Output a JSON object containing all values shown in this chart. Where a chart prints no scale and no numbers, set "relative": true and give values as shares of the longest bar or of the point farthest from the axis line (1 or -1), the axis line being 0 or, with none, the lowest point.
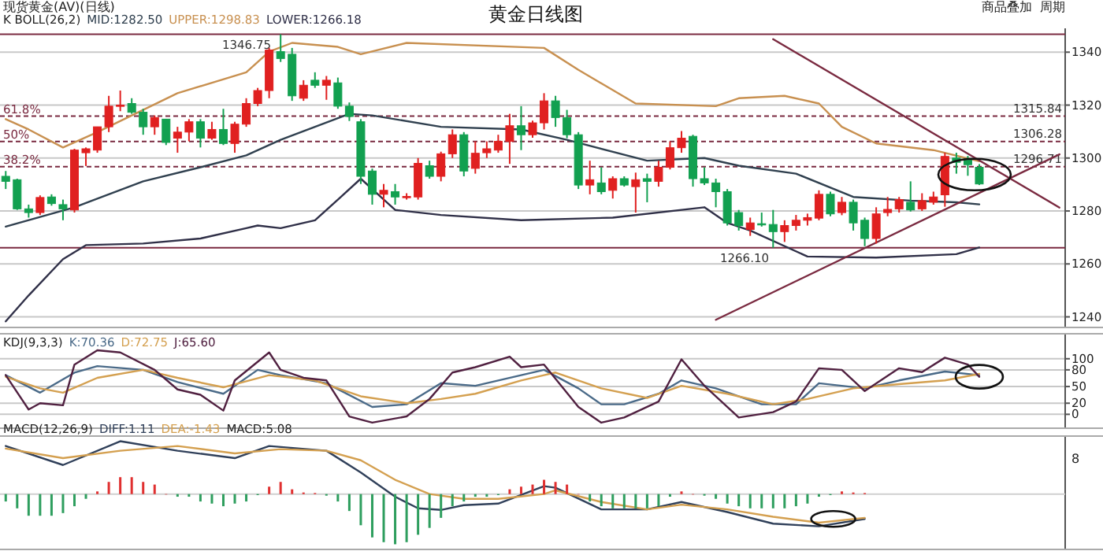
{
  "chart_data": [
    {
      "type": "candlestick",
      "title": "黄金日线图",
      "annotations": [
        "现货黄金(AV)(日线)",
        "商品叠加",
        "周期",
        "K  BOLL(26,2)",
        "MID:1282.50",
        "UPPER:1298.83",
        "LOWER:1266.18",
        {
          "text": "61.8%",
          "y": 1315.84
        },
        {
          "text": "50%",
          "y": 1306.28
        },
        {
          "text": "38.2%",
          "y": 1296.71
        }
      ],
      "categories": [
        null,
        null,
        null,
        null,
        null,
        null,
        null,
        null,
        null,
        null,
        null,
        null,
        null,
        null,
        null,
        null,
        null,
        null,
        null,
        null,
        null,
        null,
        null,
        null,
        null,
        null,
        null,
        null,
        null,
        null,
        null,
        null,
        null,
        null,
        null,
        null,
        null,
        null,
        null,
        null,
        null,
        null,
        null,
        null,
        null,
        null,
        null,
        null,
        null,
        null,
        null,
        null,
        null,
        null,
        null,
        null,
        null,
        null,
        null,
        null,
        null,
        null,
        null,
        null,
        null,
        null,
        null,
        null,
        null,
        null,
        null,
        null,
        null,
        null,
        null,
        null,
        null,
        null,
        null,
        null,
        null,
        null,
        null,
        null,
        null,
        null,
        null,
        null,
        null,
        null,
        null,
        null,
        null
      ],
      "ohlc": [
        [
          1293.1,
          1295.1,
          1288.3,
          1291.2
        ],
        [
          1291.8,
          1292.2,
          1280.4,
          1280.8
        ],
        [
          1280.8,
          1282.4,
          1277.5,
          1279.4
        ],
        [
          1279.4,
          1285.9,
          1278.5,
          1285.1
        ],
        [
          1285.3,
          1286.3,
          1282,
          1282.8
        ],
        [
          1282.4,
          1284.3,
          1276.5,
          1280.8
        ],
        [
          1280.4,
          1303.5,
          1279.4,
          1303
        ],
        [
          1302,
          1304,
          1297,
          1303.5
        ],
        [
          1303,
          1311.8,
          1302,
          1311.8
        ],
        [
          1311.8,
          1323.5,
          1309.8,
          1319.6
        ],
        [
          1319.6,
          1325.5,
          1317.7,
          1320
        ],
        [
          1320.6,
          1322.6,
          1316.7,
          1317.3
        ],
        [
          1317.3,
          1318.6,
          1308.8,
          1311.8
        ],
        [
          1311.8,
          1316.1,
          1308.8,
          1315.3
        ],
        [
          1314.7,
          1314.7,
          1304.9,
          1305.9
        ],
        [
          1307.5,
          1311.8,
          1302,
          1309.8
        ],
        [
          1309.8,
          1314.7,
          1306.3,
          1313.7
        ],
        [
          1313.7,
          1314.7,
          1304,
          1307.5
        ],
        [
          1307.5,
          1313.7,
          1306.9,
          1310.8
        ],
        [
          1310.8,
          1318.6,
          1304.9,
          1305.5
        ],
        [
          1305.5,
          1313.7,
          1302,
          1312.8
        ],
        [
          1312.8,
          1322.6,
          1311.8,
          1320.6
        ],
        [
          1320.6,
          1326.5,
          1319.6,
          1325.5
        ],
        [
          1325.5,
          1341.6,
          1322.6,
          1340.8
        ],
        [
          1340.2,
          1346.75,
          1336.3,
          1337.6
        ],
        [
          1339.2,
          1341.6,
          1321.6,
          1323.5
        ],
        [
          1322.6,
          1329.4,
          1321.6,
          1327.5
        ],
        [
          1329.4,
          1332.4,
          1326.5,
          1327.5
        ],
        [
          1327.5,
          1331,
          1322,
          1329.4
        ],
        [
          1328.4,
          1330.4,
          1318.6,
          1319.6
        ],
        [
          1319.6,
          1321,
          1314,
          1315.7
        ],
        [
          1313.7,
          1314.7,
          1290.2,
          1293.1
        ],
        [
          1295.1,
          1296,
          1282.4,
          1286.3
        ],
        [
          1286.3,
          1290.2,
          1281.4,
          1287.8
        ],
        [
          1287.3,
          1290.2,
          1282.4,
          1285.3
        ],
        [
          1285.1,
          1286.7,
          1284.3,
          1285.5
        ],
        [
          1285.3,
          1300,
          1284.3,
          1298
        ],
        [
          1297.1,
          1299,
          1292.2,
          1293.1
        ],
        [
          1293.1,
          1302.4,
          1291.2,
          1301.6
        ],
        [
          1301.6,
          1310.8,
          1300,
          1308.8
        ],
        [
          1308.8,
          1309.8,
          1293.1,
          1295.1
        ],
        [
          1296.1,
          1306.3,
          1294.1,
          1301.8
        ],
        [
          1302,
          1306.3,
          1300,
          1303.5
        ],
        [
          1303,
          1308.8,
          1302,
          1306.3
        ],
        [
          1306.3,
          1316.7,
          1297.8,
          1312.2
        ],
        [
          1312.2,
          1319.6,
          1303,
          1308.8
        ],
        [
          1308.8,
          1314.1,
          1307.7,
          1313.3
        ],
        [
          1313.3,
          1324.5,
          1310.8,
          1321.6
        ],
        [
          1321.6,
          1323.5,
          1311.8,
          1315.3
        ],
        [
          1315.3,
          1318.2,
          1307.5,
          1308.8
        ],
        [
          1308.8,
          1309.8,
          1288.3,
          1289.8
        ],
        [
          1289.8,
          1299,
          1286.3,
          1291.8
        ],
        [
          1290.6,
          1296.5,
          1286.3,
          1287.3
        ],
        [
          1287.8,
          1293.1,
          1284.7,
          1292.2
        ],
        [
          1292.2,
          1293.1,
          1289.2,
          1289.8
        ],
        [
          1289.2,
          1294.5,
          1279.4,
          1291.8
        ],
        [
          1292.2,
          1294.1,
          1283.3,
          1291.2
        ],
        [
          1291.2,
          1299,
          1289.2,
          1296.5
        ],
        [
          1296.5,
          1306.3,
          1295.7,
          1303.9
        ],
        [
          1303.9,
          1310.2,
          1302,
          1307.5
        ],
        [
          1308.2,
          1308.8,
          1289.2,
          1292.2
        ],
        [
          1292.2,
          1296.5,
          1289.8,
          1290.6
        ],
        [
          1290.6,
          1292.2,
          1281.4,
          1287.3
        ],
        [
          1287.3,
          1288.3,
          1274.5,
          1275.5
        ],
        [
          1279.4,
          1280.4,
          1272.6,
          1274.5
        ],
        [
          1273,
          1277.5,
          1270.6,
          1275.5
        ],
        [
          1275.2,
          1279.4,
          1274.1,
          1274.9
        ],
        [
          1274.9,
          1280.4,
          1266.1,
          1272.2
        ],
        [
          1272.2,
          1276.5,
          1268.3,
          1274.5
        ],
        [
          1274.5,
          1278.5,
          1272.6,
          1276.5
        ],
        [
          1276.5,
          1279,
          1274.5,
          1277.5
        ],
        [
          1277.3,
          1287.8,
          1276.5,
          1286.3
        ],
        [
          1286.3,
          1287.3,
          1278,
          1278.9
        ],
        [
          1279.4,
          1285.3,
          1278.4,
          1283.3
        ],
        [
          1283.3,
          1284.3,
          1272.6,
          1275.5
        ],
        [
          1276.5,
          1277.5,
          1266.7,
          1269.6
        ],
        [
          1269.6,
          1281.4,
          1267.7,
          1278.9
        ],
        [
          1279.4,
          1285.3,
          1278,
          1280.6
        ],
        [
          1280.8,
          1285.3,
          1279.4,
          1284.3
        ],
        [
          1283.3,
          1291.2,
          1279.8,
          1280.4
        ],
        [
          1280.8,
          1286.7,
          1280,
          1283.9
        ],
        [
          1283.3,
          1287.3,
          1282.4,
          1285.3
        ],
        [
          1286.1,
          1302,
          1281.6,
          1300.6
        ],
        [
          1300,
          1302,
          1294.1,
          1298.4
        ],
        [
          1299.8,
          1300.8,
          1293.3,
          1297.5
        ],
        [
          1296.5,
          1297.7,
          1289.8,
          1290.2
        ],
        null,
        null,
        null,
        null,
        null,
        null,
        null
      ],
      "colors": [
        "#12a050",
        "#12a050",
        "#12a050",
        "#e02020",
        "#12a050",
        "#12a050",
        "#e02020",
        "#e02020",
        "#e02020",
        "#e02020",
        "#e02020",
        "#12a050",
        "#12a050",
        "#e02020",
        "#12a050",
        "#e02020",
        "#e02020",
        "#12a050",
        "#e02020",
        "#12a050",
        "#e02020",
        "#e02020",
        "#e02020",
        "#e02020",
        "#12a050",
        "#12a050",
        "#e02020",
        "#12a050",
        "#e02020",
        "#12a050",
        "#12a050",
        "#12a050",
        "#12a050",
        "#e02020",
        "#12a050",
        "#e02020",
        "#e02020",
        "#12a050",
        "#e02020",
        "#e02020",
        "#12a050",
        "#e02020",
        "#e02020",
        "#e02020",
        "#e02020",
        "#12a050",
        "#e02020",
        "#e02020",
        "#12a050",
        "#12a050",
        "#12a050",
        "#e02020",
        "#12a050",
        "#e02020",
        "#12a050",
        "#e02020",
        "#12a050",
        "#e02020",
        "#e02020",
        "#e02020",
        "#12a050",
        "#12a050",
        "#12a050",
        "#12a050",
        "#12a050",
        "#e02020",
        "#12a050",
        "#12a050",
        "#e02020",
        "#e02020",
        "#e02020",
        "#e02020",
        "#12a050",
        "#e02020",
        "#12a050",
        "#12a050",
        "#e02020",
        "#e02020",
        "#e02020",
        "#12a050",
        "#e02020",
        "#e02020",
        "#e02020",
        "#12a050",
        "#12a050",
        "#12a050",
        null,
        null,
        null,
        null,
        null,
        null,
        null
      ],
      "series": [
        {
          "type": "line",
          "color": "#c89050",
          "values": [
            1314.7,
            null,
            1310.8,
            null,
            null,
            1304,
            null,
            null,
            1309.8,
            null,
            null,
            null,
            null,
            null,
            null,
            1324.5,
            null,
            null,
            null,
            null,
            null,
            1332.4,
            null,
            1340.2,
            null,
            1343.5,
            null,
            null,
            null,
            1342,
            null,
            1339.2,
            null,
            null,
            null,
            1343.5,
            null,
            null,
            null,
            null,
            null,
            null,
            null,
            null,
            null,
            null,
            null,
            1341.6,
            null,
            null,
            1333.3,
            null,
            null,
            null,
            null,
            1320.6,
            null,
            null,
            null,
            null,
            null,
            null,
            1319.6,
            null,
            1322.6,
            null,
            null,
            null,
            1323.5,
            null,
            null,
            1320.6,
            null,
            1311.8,
            null,
            null,
            1305.5,
            null,
            null,
            null,
            null,
            1303,
            null,
            null,
            null,
            1298.8,
            null,
            null,
            null,
            null,
            null,
            null,
            null
          ]
        },
        {
          "type": "line",
          "color": "#30404f",
          "values": [
            1274.1,
            null,
            null,
            null,
            null,
            null,
            1281.4,
            null,
            null,
            null,
            null,
            null,
            1291.2,
            null,
            null,
            null,
            null,
            1296.5,
            null,
            null,
            null,
            1301,
            null,
            null,
            1306.9,
            null,
            null,
            1311.8,
            null,
            null,
            1316.7,
            null,
            1316.1,
            null,
            null,
            null,
            null,
            null,
            1311.8,
            null,
            null,
            null,
            null,
            null,
            null,
            1310.8,
            null,
            null,
            null,
            1306.9,
            null,
            null,
            null,
            null,
            null,
            null,
            1299,
            null,
            null,
            null,
            null,
            1300,
            null,
            null,
            1297.1,
            null,
            null,
            null,
            null,
            1294.1,
            null,
            null,
            null,
            null,
            1285.3,
            null,
            null,
            null,
            null,
            1283.9,
            null,
            null,
            null,
            1283.3,
            null,
            1282.5,
            null,
            null,
            null,
            null,
            null,
            null,
            null
          ]
        },
        {
          "type": "line",
          "color": "#303048",
          "values": [
            1238.3,
            null,
            1248.1,
            null,
            null,
            1261.8,
            null,
            1267.1,
            null,
            null,
            null,
            null,
            1267.7,
            null,
            null,
            null,
            null,
            1269.6,
            null,
            null,
            null,
            1273.5,
            1274.5,
            null,
            1273.5,
            null,
            null,
            1276.5,
            null,
            1284.3,
            null,
            1292.2,
            null,
            null,
            1280.4,
            null,
            null,
            null,
            1278.5,
            null,
            null,
            null,
            null,
            null,
            null,
            1276.5,
            null,
            null,
            null,
            null,
            null,
            null,
            null,
            1277.5,
            null,
            null,
            null,
            null,
            null,
            null,
            null,
            1281.4,
            null,
            1275.5,
            null,
            1272.6,
            null,
            null,
            null,
            null,
            1262.8,
            null,
            null,
            null,
            null,
            null,
            1262.4,
            null,
            null,
            null,
            null,
            null,
            null,
            1263.7,
            null,
            1266.2,
            null,
            null,
            null,
            null,
            null,
            null,
            null
          ]
        },
        {
          "type": "line",
          "color": "#7a2a40",
          "values": [
            null,
            null,
            null,
            null,
            null,
            null,
            null,
            null,
            null,
            null,
            null,
            null,
            null,
            null,
            null,
            null,
            null,
            null,
            null,
            null,
            null,
            null,
            null,
            null,
            null,
            null,
            null,
            null,
            null,
            null,
            null,
            null,
            null,
            null,
            null,
            null,
            null,
            null,
            null,
            null,
            null,
            null,
            null,
            null,
            null,
            null,
            null,
            null,
            null,
            null,
            null,
            null,
            null,
            null,
            null,
            null,
            null,
            null,
            null,
            null,
            null,
            null,
            null,
            null,
            null,
            null,
            null,
            1344.9,
            null,
            null,
            null,
            null,
            null,
            null,
            null,
            null,
            null,
            null,
            null,
            null,
            null,
            null,
            null,
            null,
            null,
            null,
            null,
            null,
            null,
            null,
            null,
            null,
            1281.3
          ]
        },
        {
          "type": "line",
          "color": "#7a2a40",
          "values": [
            null,
            null,
            null,
            null,
            null,
            null,
            null,
            null,
            null,
            null,
            null,
            null,
            null,
            null,
            null,
            null,
            null,
            null,
            null,
            null,
            null,
            null,
            null,
            null,
            null,
            null,
            null,
            null,
            null,
            null,
            null,
            null,
            null,
            null,
            null,
            null,
            null,
            null,
            null,
            null,
            null,
            null,
            null,
            null,
            null,
            null,
            null,
            null,
            null,
            null,
            null,
            null,
            null,
            null,
            null,
            null,
            null,
            null,
            null,
            null,
            null,
            null,
            1238.9,
            null,
            null,
            null,
            null,
            null,
            null,
            null,
            null,
            null,
            null,
            null,
            null,
            null,
            null,
            null,
            null,
            null,
            null,
            null,
            null,
            null,
            null,
            null,
            null,
            null,
            null,
            null,
            null,
            null,
            1301.4
          ]
        }
      ],
      "ylim": [
        1236,
        1349
      ],
      "yticks": [
        1240,
        1260,
        1280,
        1300,
        1320,
        1340
      ],
      "tick_labels": "y",
      "grid": "y",
      "ref_lines": [
        {
          "axis": "y",
          "value": 1346.75,
          "label": "1346.75",
          "color": "#7a2a40",
          "line_style": "solid"
        },
        {
          "axis": "y",
          "value": 1266.1,
          "label": "1266.10",
          "color": "#7a2a40",
          "line_style": "solid"
        },
        {
          "axis": "y",
          "value": 1315.84,
          "label": "1315.84",
          "color": "#7a2a40",
          "line_style": "dashed"
        },
        {
          "axis": "y",
          "value": 1306.28,
          "label": "1306.28",
          "color": "#7a2a40",
          "line_style": "dashed"
        },
        {
          "axis": "y",
          "value": 1296.71,
          "label": "1296.71",
          "color": "#7a2a40",
          "line_style": "dashed"
        }
      ]
    },
    {
      "type": "line",
      "annotations": [
        "KDJ(9,3,3)",
        "K:70.36",
        "D:72.75",
        "J:65.60"
      ],
      "categories": [
        null,
        null,
        null,
        null,
        null,
        null,
        null,
        null,
        null,
        null,
        null,
        null,
        null,
        null,
        null,
        null,
        null,
        null,
        null,
        null,
        null,
        null,
        null,
        null,
        null,
        null,
        null,
        null,
        null,
        null,
        null,
        null,
        null,
        null,
        null,
        null,
        null,
        null,
        null,
        null,
        null,
        null,
        null,
        null,
        null,
        null,
        null,
        null,
        null,
        null,
        null,
        null,
        null,
        null,
        null,
        null,
        null,
        null,
        null,
        null,
        null,
        null,
        null,
        null,
        null,
        null,
        null,
        null,
        null,
        null,
        null,
        null,
        null,
        null,
        null,
        null,
        null,
        null,
        null,
        null,
        null,
        null,
        null,
        null,
        null,
        null,
        null,
        null,
        null,
        null,
        null,
        null,
        null
      ],
      "series": [
        {
          "color": "#4a6a88",
          "values": [
            70.5,
            null,
            null,
            39,
            null,
            null,
            75,
            null,
            86.7,
            null,
            null,
            null,
            80,
            null,
            null,
            58,
            null,
            null,
            null,
            37,
            null,
            null,
            80,
            null,
            70.5,
            null,
            null,
            null,
            56,
            null,
            null,
            null,
            13.3,
            null,
            null,
            18,
            null,
            null,
            56,
            null,
            null,
            51.4,
            null,
            null,
            null,
            70.5,
            null,
            80,
            null,
            null,
            46.7,
            null,
            18,
            null,
            18,
            null,
            null,
            37,
            null,
            61,
            null,
            null,
            46.7,
            null,
            null,
            null,
            18,
            null,
            null,
            18,
            null,
            56,
            null,
            null,
            null,
            46.7,
            null,
            null,
            61,
            null,
            null,
            null,
            77,
            null,
            null,
            70.4,
            null,
            null,
            null,
            null,
            null,
            null,
            null
          ]
        },
        {
          "color": "#d4a050",
          "values": [
            67.6,
            null,
            null,
            46.7,
            null,
            39,
            null,
            null,
            65.7,
            null,
            null,
            null,
            80,
            null,
            null,
            65.7,
            null,
            null,
            null,
            48.6,
            null,
            null,
            null,
            70.5,
            null,
            null,
            null,
            61,
            null,
            null,
            null,
            32.4,
            null,
            null,
            null,
            20,
            null,
            null,
            27.6,
            null,
            null,
            37,
            null,
            null,
            null,
            61,
            null,
            70.5,
            75.2,
            null,
            null,
            null,
            46.7,
            null,
            null,
            null,
            29.5,
            null,
            null,
            51.4,
            null,
            null,
            null,
            37,
            null,
            null,
            null,
            18,
            null,
            null,
            27.6,
            null,
            null,
            null,
            46.7,
            null,
            null,
            null,
            54.3,
            null,
            null,
            null,
            61,
            null,
            null,
            72.8,
            null,
            null,
            null,
            null,
            null,
            null,
            null
          ]
        },
        {
          "color": "#502040",
          "values": [
            70.5,
            null,
            8.6,
            20,
            null,
            16.2,
            89.5,
            null,
            115.2,
            null,
            111.4,
            null,
            null,
            80,
            null,
            44.8,
            null,
            35.2,
            null,
            6.7,
            61,
            null,
            null,
            111.4,
            80,
            null,
            65.7,
            null,
            61,
            null,
            -3.8,
            null,
            -15,
            null,
            null,
            -3.8,
            null,
            27.6,
            null,
            75.2,
            null,
            84.8,
            null,
            null,
            103.8,
            84.8,
            null,
            89.5,
            null,
            null,
            13.3,
            null,
            -15,
            null,
            -5.7,
            null,
            null,
            22.9,
            null,
            99,
            null,
            51.4,
            null,
            null,
            -5.7,
            null,
            null,
            3.8,
            null,
            22.9,
            null,
            82.9,
            null,
            80,
            null,
            41.9,
            null,
            null,
            82.9,
            null,
            76,
            null,
            102,
            null,
            89.5,
            67.6,
            null,
            null,
            null,
            null,
            null,
            null,
            null
          ]
        }
      ],
      "ylim": [
        -25,
        145
      ],
      "yticks": [
        0,
        20,
        50,
        80,
        100
      ],
      "tick_labels": "y",
      "grid": "y"
    },
    {
      "type": "bar",
      "relative": true,
      "annotations": [
        "MACD(12,26,9)",
        "DIFF:1.11",
        "DEA:-1.43",
        "MACD:5.08",
        "8"
      ],
      "categories": [
        null,
        null,
        null,
        null,
        null,
        null,
        null,
        null,
        null,
        null,
        null,
        null,
        null,
        null,
        null,
        null,
        null,
        null,
        null,
        null,
        null,
        null,
        null,
        null,
        null,
        null,
        null,
        null,
        null,
        null,
        null,
        null,
        null,
        null,
        null,
        null,
        null,
        null,
        null,
        null,
        null,
        null,
        null,
        null,
        null,
        null,
        null,
        null,
        null,
        null,
        null,
        null,
        null,
        null,
        null,
        null,
        null,
        null,
        null,
        null,
        null,
        null,
        null,
        null,
        null,
        null,
        null,
        null,
        null,
        null,
        null,
        null,
        null,
        null,
        null,
        null,
        null,
        null,
        null,
        null,
        null,
        null,
        null,
        null,
        null,
        null,
        null,
        null,
        null,
        null,
        null,
        null,
        null
      ],
      "values": [
        -0.14,
        -0.27,
        -0.41,
        -0.41,
        -0.41,
        -0.36,
        -0.23,
        -0.09,
        0.05,
        0.23,
        0.32,
        0.32,
        0.23,
        0.18,
        0,
        -0.05,
        -0.05,
        -0.14,
        -0.18,
        -0.23,
        -0.18,
        -0.14,
        -0.02,
        0.14,
        0.23,
        0.09,
        0.03,
        0.02,
        -0.03,
        -0.14,
        -0.32,
        -0.59,
        -0.82,
        -0.91,
        -0.95,
        -0.91,
        -0.77,
        -0.64,
        -0.45,
        -0.23,
        -0.14,
        -0.05,
        -0.05,
        -0.02,
        0.09,
        0.14,
        0.18,
        0.27,
        0.23,
        0.18,
        0,
        -0.14,
        -0.23,
        -0.27,
        -0.27,
        -0.27,
        -0.27,
        -0.23,
        -0.05,
        0.05,
        0,
        -0.03,
        -0.09,
        -0.18,
        -0.23,
        -0.27,
        -0.27,
        -0.27,
        -0.27,
        -0.23,
        -0.18,
        -0.05,
        -0.02,
        0.05,
        0.03,
        0.02,
        null,
        null,
        null,
        null,
        null,
        null,
        null,
        null,
        null,
        null,
        null,
        null,
        null,
        null,
        null,
        null,
        null
      ],
      "colors": [
        "#2e9e5e",
        "#2e9e5e",
        "#2e9e5e",
        "#2e9e5e",
        "#2e9e5e",
        "#2e9e5e",
        "#2e9e5e",
        "#2e9e5e",
        "#e03030",
        "#e03030",
        "#e03030",
        "#e03030",
        "#e03030",
        "#e03030",
        "#e03030",
        "#2e9e5e",
        "#2e9e5e",
        "#2e9e5e",
        "#2e9e5e",
        "#2e9e5e",
        "#2e9e5e",
        "#2e9e5e",
        "#2e9e5e",
        "#e03030",
        "#e03030",
        "#e03030",
        "#e03030",
        "#e03030",
        "#2e9e5e",
        "#2e9e5e",
        "#2e9e5e",
        "#2e9e5e",
        "#2e9e5e",
        "#2e9e5e",
        "#2e9e5e",
        "#2e9e5e",
        "#2e9e5e",
        "#2e9e5e",
        "#2e9e5e",
        "#2e9e5e",
        "#2e9e5e",
        "#2e9e5e",
        "#2e9e5e",
        "#2e9e5e",
        "#e03030",
        "#e03030",
        "#e03030",
        "#e03030",
        "#e03030",
        "#e03030",
        "#e03030",
        "#2e9e5e",
        "#2e9e5e",
        "#2e9e5e",
        "#2e9e5e",
        "#2e9e5e",
        "#2e9e5e",
        "#2e9e5e",
        "#2e9e5e",
        "#e03030",
        "#e03030",
        "#2e9e5e",
        "#2e9e5e",
        "#2e9e5e",
        "#2e9e5e",
        "#2e9e5e",
        "#2e9e5e",
        "#2e9e5e",
        "#2e9e5e",
        "#2e9e5e",
        "#2e9e5e",
        "#2e9e5e",
        "#2e9e5e",
        "#e03030",
        "#e03030",
        "#e03030",
        null,
        null,
        null,
        null,
        null,
        null,
        null,
        null,
        null,
        null,
        null,
        null,
        null,
        null,
        null,
        null,
        null
      ],
      "series": [
        {
          "type": "line",
          "color": "#30405a",
          "values": [
            0.91,
            null,
            null,
            null,
            null,
            0.55,
            null,
            null,
            null,
            null,
            1,
            null,
            null,
            null,
            null,
            0.82,
            null,
            null,
            null,
            null,
            0.68,
            null,
            null,
            0.91,
            null,
            null,
            null,
            null,
            0.82,
            null,
            null,
            0.41,
            null,
            null,
            -0.05,
            null,
            -0.27,
            null,
            -0.3,
            null,
            -0.21,
            null,
            null,
            -0.18,
            null,
            null,
            null,
            0.15,
            0.12,
            null,
            null,
            null,
            -0.29,
            null,
            null,
            null,
            -0.29,
            null,
            null,
            -0.15,
            null,
            null,
            null,
            -0.34,
            null,
            null,
            null,
            -0.56,
            null,
            null,
            null,
            -0.61,
            null,
            null,
            null,
            -0.47,
            null,
            null,
            null,
            null,
            null,
            null,
            null,
            null,
            null,
            null,
            null,
            null,
            null,
            null,
            null,
            null,
            null
          ]
        },
        {
          "type": "line",
          "color": "#d4a050",
          "values": [
            0.86,
            null,
            null,
            null,
            null,
            0.68,
            null,
            null,
            null,
            null,
            0.82,
            null,
            null,
            null,
            null,
            0.91,
            null,
            null,
            null,
            null,
            0.77,
            null,
            null,
            null,
            0.85,
            null,
            null,
            null,
            0.82,
            null,
            null,
            0.64,
            null,
            null,
            0.27,
            null,
            null,
            0,
            null,
            null,
            -0.09,
            null,
            null,
            -0.09,
            null,
            null,
            null,
            0,
            0.07,
            null,
            null,
            null,
            -0.15,
            null,
            null,
            null,
            -0.29,
            null,
            null,
            -0.2,
            null,
            null,
            null,
            -0.29,
            null,
            null,
            null,
            -0.43,
            null,
            null,
            null,
            -0.54,
            null,
            null,
            null,
            -0.45,
            null,
            null,
            null,
            null,
            null,
            null,
            null,
            null,
            null,
            null,
            null,
            null,
            null,
            null,
            null,
            null,
            null
          ]
        }
      ],
      "tick_labels": false
    }
  ]
}
